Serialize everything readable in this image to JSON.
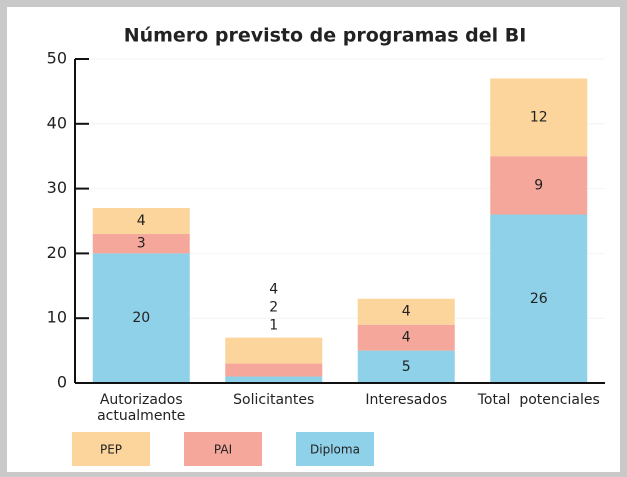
{
  "chart_data": {
    "type": "stacked_bar",
    "title": "Número previsto de programas del BI",
    "categories": [
      "Autorizados actualmente",
      "Solicitantes",
      "Interesados",
      "Total  potenciales"
    ],
    "series": [
      {
        "name": "Diploma",
        "color": "#8fd1e8",
        "values": [
          20,
          1,
          5,
          26
        ]
      },
      {
        "name": "PAI",
        "color": "#f6a79b",
        "values": [
          3,
          2,
          4,
          9
        ]
      },
      {
        "name": "PEP",
        "color": "#fcd59c",
        "values": [
          4,
          4,
          4,
          12
        ]
      }
    ],
    "ylim": [
      0,
      50
    ],
    "yticks": [
      0,
      10,
      20,
      30,
      40,
      50
    ],
    "grid": true
  }
}
